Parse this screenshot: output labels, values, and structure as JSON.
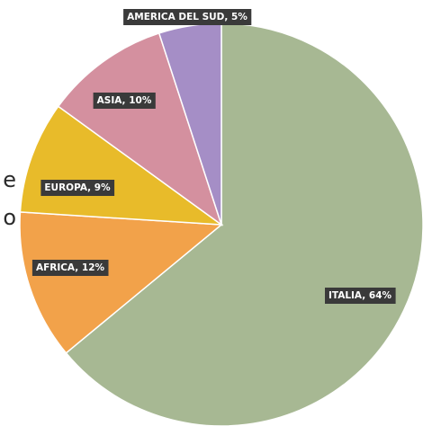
{
  "chart_data": {
    "type": "pie",
    "title": "",
    "start_angle_deg": 0,
    "direction": "clockwise",
    "slices": [
      {
        "label": "ITALIA, 64%",
        "value": 64,
        "color": "#a7b893"
      },
      {
        "label": "AFRICA, 12%",
        "value": 12,
        "color": "#f2a24a"
      },
      {
        "label": "EUROPA, 9%",
        "value": 9,
        "color": "#e8bb2a"
      },
      {
        "label": "ASIA, 10%",
        "value": 10,
        "color": "#d4909f"
      },
      {
        "label": "AMERICA DEL SUD, 5%",
        "value": 5,
        "color": "#a58ec6"
      }
    ],
    "label_style": {
      "box_color": "#3a3a3a",
      "text_color": "#ffffff"
    }
  },
  "edge_text": {
    "line1": "e",
    "line2": "o"
  }
}
